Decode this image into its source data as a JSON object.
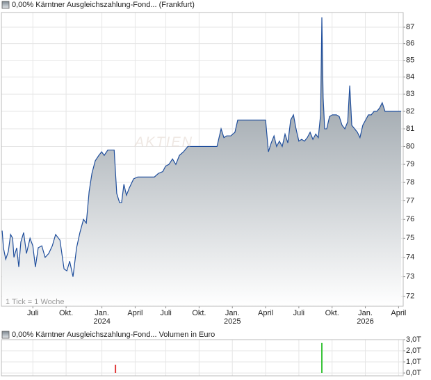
{
  "chart_data": [
    {
      "type": "line",
      "title": "0,00% Kärntner Ausgleichszahlung-Fond... (Frankfurt)",
      "note": "1 Tick = 1 Woche",
      "watermark": "AKTIEN",
      "color": "#1f4e9c",
      "fill_color": "#7d8891",
      "log_scale": true,
      "grid": true,
      "x": [
        0,
        0.5,
        1.4,
        2.4,
        3.3,
        4.1,
        4.6,
        5.7,
        6.5,
        7.3,
        8.4,
        9.5,
        10.9,
        12.0,
        13.0,
        14.1,
        15.5,
        16.8,
        18.2,
        19.6,
        20.9,
        22.6,
        24.2,
        25.3,
        26.4,
        27.7,
        29.1,
        30.4,
        31.8,
        32.9,
        34.0,
        35.1,
        36.4,
        37.8,
        38.9,
        39.9,
        41.3,
        42.7,
        43.8,
        44.8,
        45.9,
        46.7,
        47.6,
        48.6,
        49.7,
        51.4,
        53.0,
        55.2,
        57.3,
        59.5,
        61.1,
        62.8,
        63.9,
        65.2,
        66.6,
        67.9,
        69.3,
        70.9,
        72.6,
        74.2,
        75.8,
        78.0,
        79.6,
        81.8,
        84.0,
        85.6,
        86.7,
        87.8,
        89.4,
        91.0,
        92.1,
        93.8,
        95.9,
        98.1,
        100.3,
        103.0,
        104.1,
        105.2,
        106.3,
        107.3,
        108.4,
        109.5,
        110.6,
        111.7,
        112.8,
        113.9,
        114.9,
        116.0,
        117.1,
        118.2,
        119.3,
        120.4,
        121.5,
        122.6,
        123.6,
        124.5,
        125.0,
        125.5,
        126.1,
        126.9,
        128.0,
        129.1,
        130.7,
        131.8,
        132.9,
        134.0,
        135.1,
        135.9,
        136.7,
        137.8,
        138.9,
        139.9,
        141.0,
        142.1,
        143.2,
        144.3,
        145.4,
        146.5,
        147.6,
        148.6,
        149.7,
        151.4,
        153.0,
        154.6,
        156.0
      ],
      "values": [
        75.4,
        74.5,
        73.9,
        74.3,
        75.2,
        75.0,
        74.0,
        74.5,
        73.5,
        74.8,
        75.3,
        74.2,
        75.0,
        74.6,
        73.5,
        74.5,
        74.6,
        74.0,
        74.2,
        74.6,
        75.2,
        74.9,
        73.4,
        73.3,
        73.8,
        73.0,
        74.5,
        75.3,
        76.0,
        75.8,
        77.5,
        78.5,
        79.2,
        79.5,
        79.7,
        79.5,
        79.8,
        79.8,
        79.8,
        77.4,
        76.9,
        76.9,
        77.9,
        77.3,
        77.7,
        78.2,
        78.3,
        78.3,
        78.3,
        78.3,
        78.5,
        78.6,
        78.9,
        79.0,
        79.3,
        79.0,
        79.5,
        79.7,
        80.0,
        80.0,
        80.0,
        80.0,
        80.0,
        80.0,
        80.0,
        81.0,
        80.5,
        80.6,
        80.6,
        80.8,
        81.5,
        81.5,
        81.5,
        81.5,
        81.5,
        81.5,
        79.7,
        80.2,
        80.6,
        80.0,
        80.3,
        80.0,
        80.7,
        80.2,
        81.5,
        81.8,
        81.0,
        80.3,
        80.4,
        80.3,
        80.5,
        80.8,
        80.4,
        80.7,
        80.5,
        81.8,
        87.6,
        82.8,
        81.0,
        81.0,
        81.7,
        81.8,
        81.8,
        81.7,
        81.2,
        81.0,
        81.4,
        83.5,
        81.2,
        81.0,
        80.8,
        80.5,
        81.2,
        81.5,
        81.8,
        81.8,
        82.0,
        82.0,
        82.2,
        82.5,
        82.0,
        82.0,
        82.0,
        82.0,
        82.0
      ],
      "xlim": [
        -0.3,
        156.8
      ],
      "ylim": [
        71.5,
        87.9
      ],
      "yticks": [
        72,
        73,
        74,
        75,
        76,
        77,
        78,
        79,
        80,
        81,
        82,
        83,
        84,
        85,
        86,
        87
      ],
      "xticks": [
        {
          "value": 12,
          "label": "Juli"
        },
        {
          "value": 25,
          "label": "Okt."
        },
        {
          "value": 39,
          "label": "Jan.",
          "year": "2024"
        },
        {
          "value": 52,
          "label": "April"
        },
        {
          "value": 64,
          "label": "Juli"
        },
        {
          "value": 77,
          "label": "Okt."
        },
        {
          "value": 90,
          "label": "Jan.",
          "year": "2025"
        },
        {
          "value": 103,
          "label": "April"
        },
        {
          "value": 116,
          "label": "Juli"
        },
        {
          "value": 129,
          "label": "Okt."
        },
        {
          "value": 142,
          "label": "Jan.",
          "year": "2026"
        },
        {
          "value": 155,
          "label": "April"
        }
      ]
    },
    {
      "type": "bar",
      "title": "0,00% Kärntner Ausgleichszahlung-Fond... Volumen in Euro",
      "x": [
        44.3,
        125.0
      ],
      "values": [
        0.75,
        2.7
      ],
      "colors": [
        "#e03a3a",
        "#3cc43c"
      ],
      "grid": true,
      "xlim": [
        -0.3,
        156.8
      ],
      "ylim": [
        -0.25,
        3.0
      ],
      "yticks": [
        {
          "value": 0,
          "label": "0,0T"
        },
        {
          "value": 1,
          "label": "1,0T"
        },
        {
          "value": 2,
          "label": "2,0T"
        },
        {
          "value": 3,
          "label": "3,0T"
        }
      ]
    }
  ]
}
